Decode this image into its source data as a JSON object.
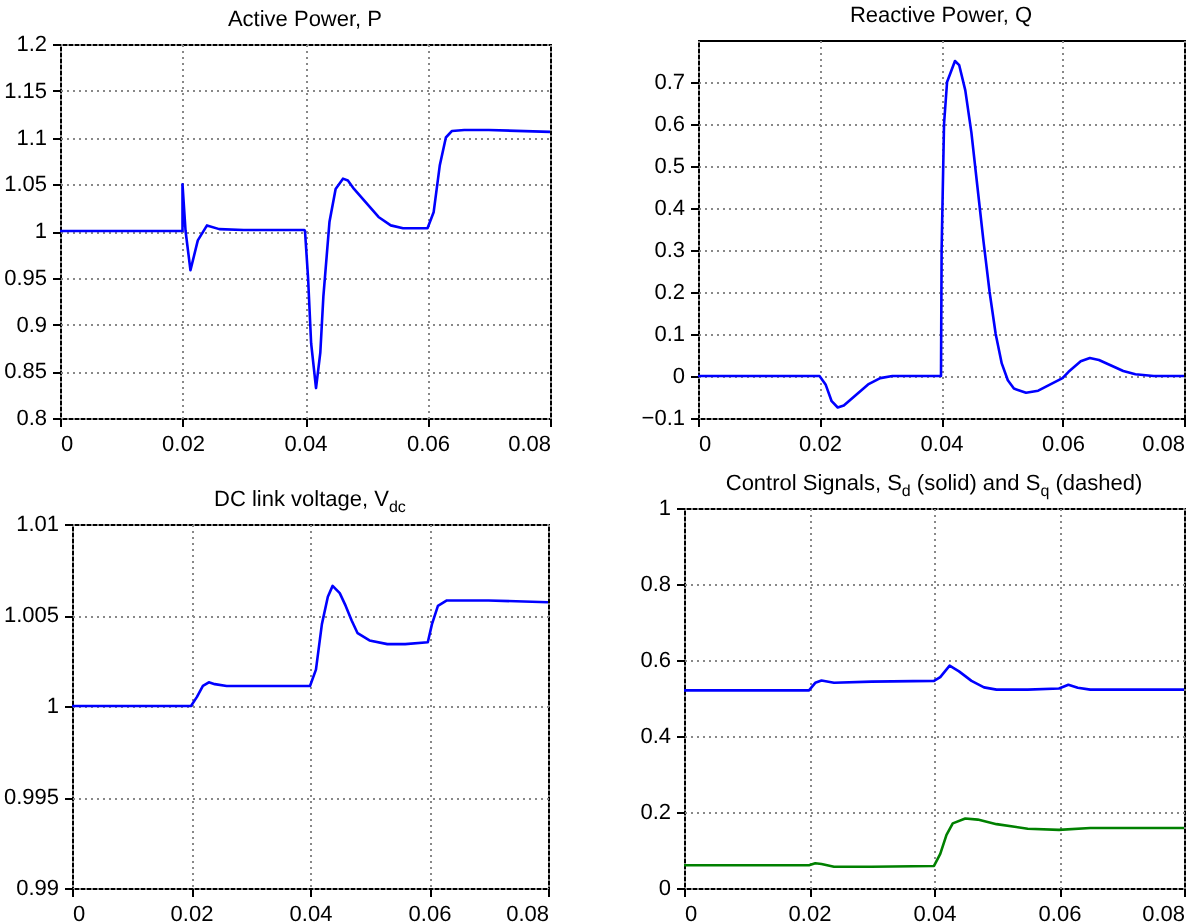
{
  "chart_data": [
    {
      "type": "line",
      "title": "Active Power, P",
      "xlim": [
        0,
        0.08
      ],
      "xticks": [
        0,
        0.02,
        0.04,
        0.06,
        0.08
      ],
      "ylim": [
        0.8,
        1.2
      ],
      "yticks": [
        0.8,
        0.85,
        0.9,
        0.95,
        1,
        1.05,
        1.1,
        1.15,
        1.2
      ],
      "grid": true,
      "series": [
        {
          "color": "#0000ff",
          "x": [
            0,
            0.02,
            0.02,
            0.0205,
            0.0213,
            0.0225,
            0.024,
            0.026,
            0.03,
            0.0399,
            0.04,
            0.0405,
            0.041,
            0.0418,
            0.0425,
            0.043,
            0.044,
            0.045,
            0.0462,
            0.047,
            0.048,
            0.05,
            0.052,
            0.054,
            0.056,
            0.06,
            0.061,
            0.062,
            0.063,
            0.064,
            0.066,
            0.07,
            0.08
          ],
          "values": [
            1,
            1,
            1.05,
            1,
            0.958,
            0.99,
            1.006,
            1.002,
            1.001,
            1.001,
            1,
            0.95,
            0.88,
            0.832,
            0.87,
            0.93,
            1.01,
            1.045,
            1.056,
            1.054,
            1.045,
            1.03,
            1.015,
            1.006,
            1.003,
            1.003,
            1.02,
            1.07,
            1.1,
            1.107,
            1.108,
            1.108,
            1.106
          ]
        }
      ]
    },
    {
      "type": "line",
      "title": "Reactive Power, Q",
      "xlim": [
        0,
        0.08
      ],
      "xticks": [
        0,
        0.02,
        0.04,
        0.06,
        0.08
      ],
      "ylim": [
        -0.1,
        0.8
      ],
      "yticks": [
        {
          "value": -0.1,
          "label": "−0.1"
        },
        0,
        0.1,
        0.2,
        0.3,
        0.4,
        0.5,
        0.6,
        0.7
      ],
      "grid": true,
      "series": [
        {
          "color": "#0000ff",
          "x": [
            0,
            0.02,
            0.021,
            0.022,
            0.023,
            0.024,
            0.026,
            0.028,
            0.03,
            0.032,
            0.04,
            0.0401,
            0.0405,
            0.041,
            0.0423,
            0.043,
            0.044,
            0.045,
            0.046,
            0.047,
            0.048,
            0.049,
            0.05,
            0.051,
            0.052,
            0.054,
            0.056,
            0.058,
            0.06,
            0.061,
            0.063,
            0.0645,
            0.066,
            0.068,
            0.07,
            0.072,
            0.075,
            0.08
          ],
          "values": [
            0,
            0,
            -0.02,
            -0.06,
            -0.075,
            -0.07,
            -0.045,
            -0.02,
            -0.005,
            0,
            0,
            0.3,
            0.6,
            0.7,
            0.75,
            0.74,
            0.68,
            0.58,
            0.45,
            0.32,
            0.2,
            0.1,
            0.03,
            -0.01,
            -0.03,
            -0.04,
            -0.035,
            -0.02,
            -0.005,
            0.01,
            0.035,
            0.043,
            0.038,
            0.025,
            0.012,
            0.004,
            0,
            0
          ]
        }
      ]
    },
    {
      "type": "line",
      "title": "DC link voltage, V$_{dc}$",
      "xlim": [
        0,
        0.08
      ],
      "xticks": [
        0,
        0.02,
        0.04,
        0.06,
        0.08
      ],
      "ylim": [
        0.99,
        1.01
      ],
      "yticks": [
        0.99,
        0.995,
        1,
        1.005,
        1.01
      ],
      "grid": true,
      "series": [
        {
          "color": "#0000ff",
          "x": [
            0,
            0.02,
            0.021,
            0.022,
            0.023,
            0.024,
            0.026,
            0.04,
            0.041,
            0.042,
            0.043,
            0.0438,
            0.045,
            0.046,
            0.047,
            0.048,
            0.05,
            0.053,
            0.056,
            0.0598,
            0.0605,
            0.0615,
            0.063,
            0.07,
            0.08
          ],
          "values": [
            1,
            1,
            1.0005,
            1.0011,
            1.0013,
            1.0012,
            1.0011,
            1.0011,
            1.002,
            1.0045,
            1.006,
            1.0066,
            1.0062,
            1.0055,
            1.0047,
            1.004,
            1.0036,
            1.0034,
            1.0034,
            1.0035,
            1.0045,
            1.0055,
            1.0058,
            1.0058,
            1.0057
          ]
        }
      ]
    },
    {
      "type": "line",
      "title": "Control Signals, S$_{d}$ (solid) and S$_{q}$ (dashed)",
      "xlim": [
        0,
        0.08
      ],
      "xticks": [
        0,
        0.02,
        0.04,
        0.06,
        0.08
      ],
      "ylim": [
        0,
        1
      ],
      "yticks": [
        0,
        0.2,
        0.4,
        0.6,
        0.8,
        1
      ],
      "grid": true,
      "series": [
        {
          "color": "#0000ff",
          "x": [
            0,
            0.02,
            0.021,
            0.022,
            0.024,
            0.03,
            0.04,
            0.041,
            0.0425,
            0.044,
            0.046,
            0.048,
            0.05,
            0.055,
            0.06,
            0.0615,
            0.063,
            0.065,
            0.08
          ],
          "values": [
            0.52,
            0.52,
            0.54,
            0.546,
            0.54,
            0.543,
            0.545,
            0.555,
            0.585,
            0.57,
            0.545,
            0.528,
            0.522,
            0.522,
            0.525,
            0.535,
            0.527,
            0.522,
            0.522
          ]
        },
        {
          "color": "#008000",
          "x": [
            0,
            0.02,
            0.021,
            0.022,
            0.024,
            0.03,
            0.04,
            0.041,
            0.042,
            0.043,
            0.045,
            0.047,
            0.05,
            0.055,
            0.06,
            0.065,
            0.08
          ],
          "values": [
            0.06,
            0.06,
            0.065,
            0.063,
            0.056,
            0.056,
            0.058,
            0.09,
            0.14,
            0.17,
            0.183,
            0.18,
            0.168,
            0.156,
            0.153,
            0.158,
            0.158
          ]
        }
      ]
    }
  ]
}
